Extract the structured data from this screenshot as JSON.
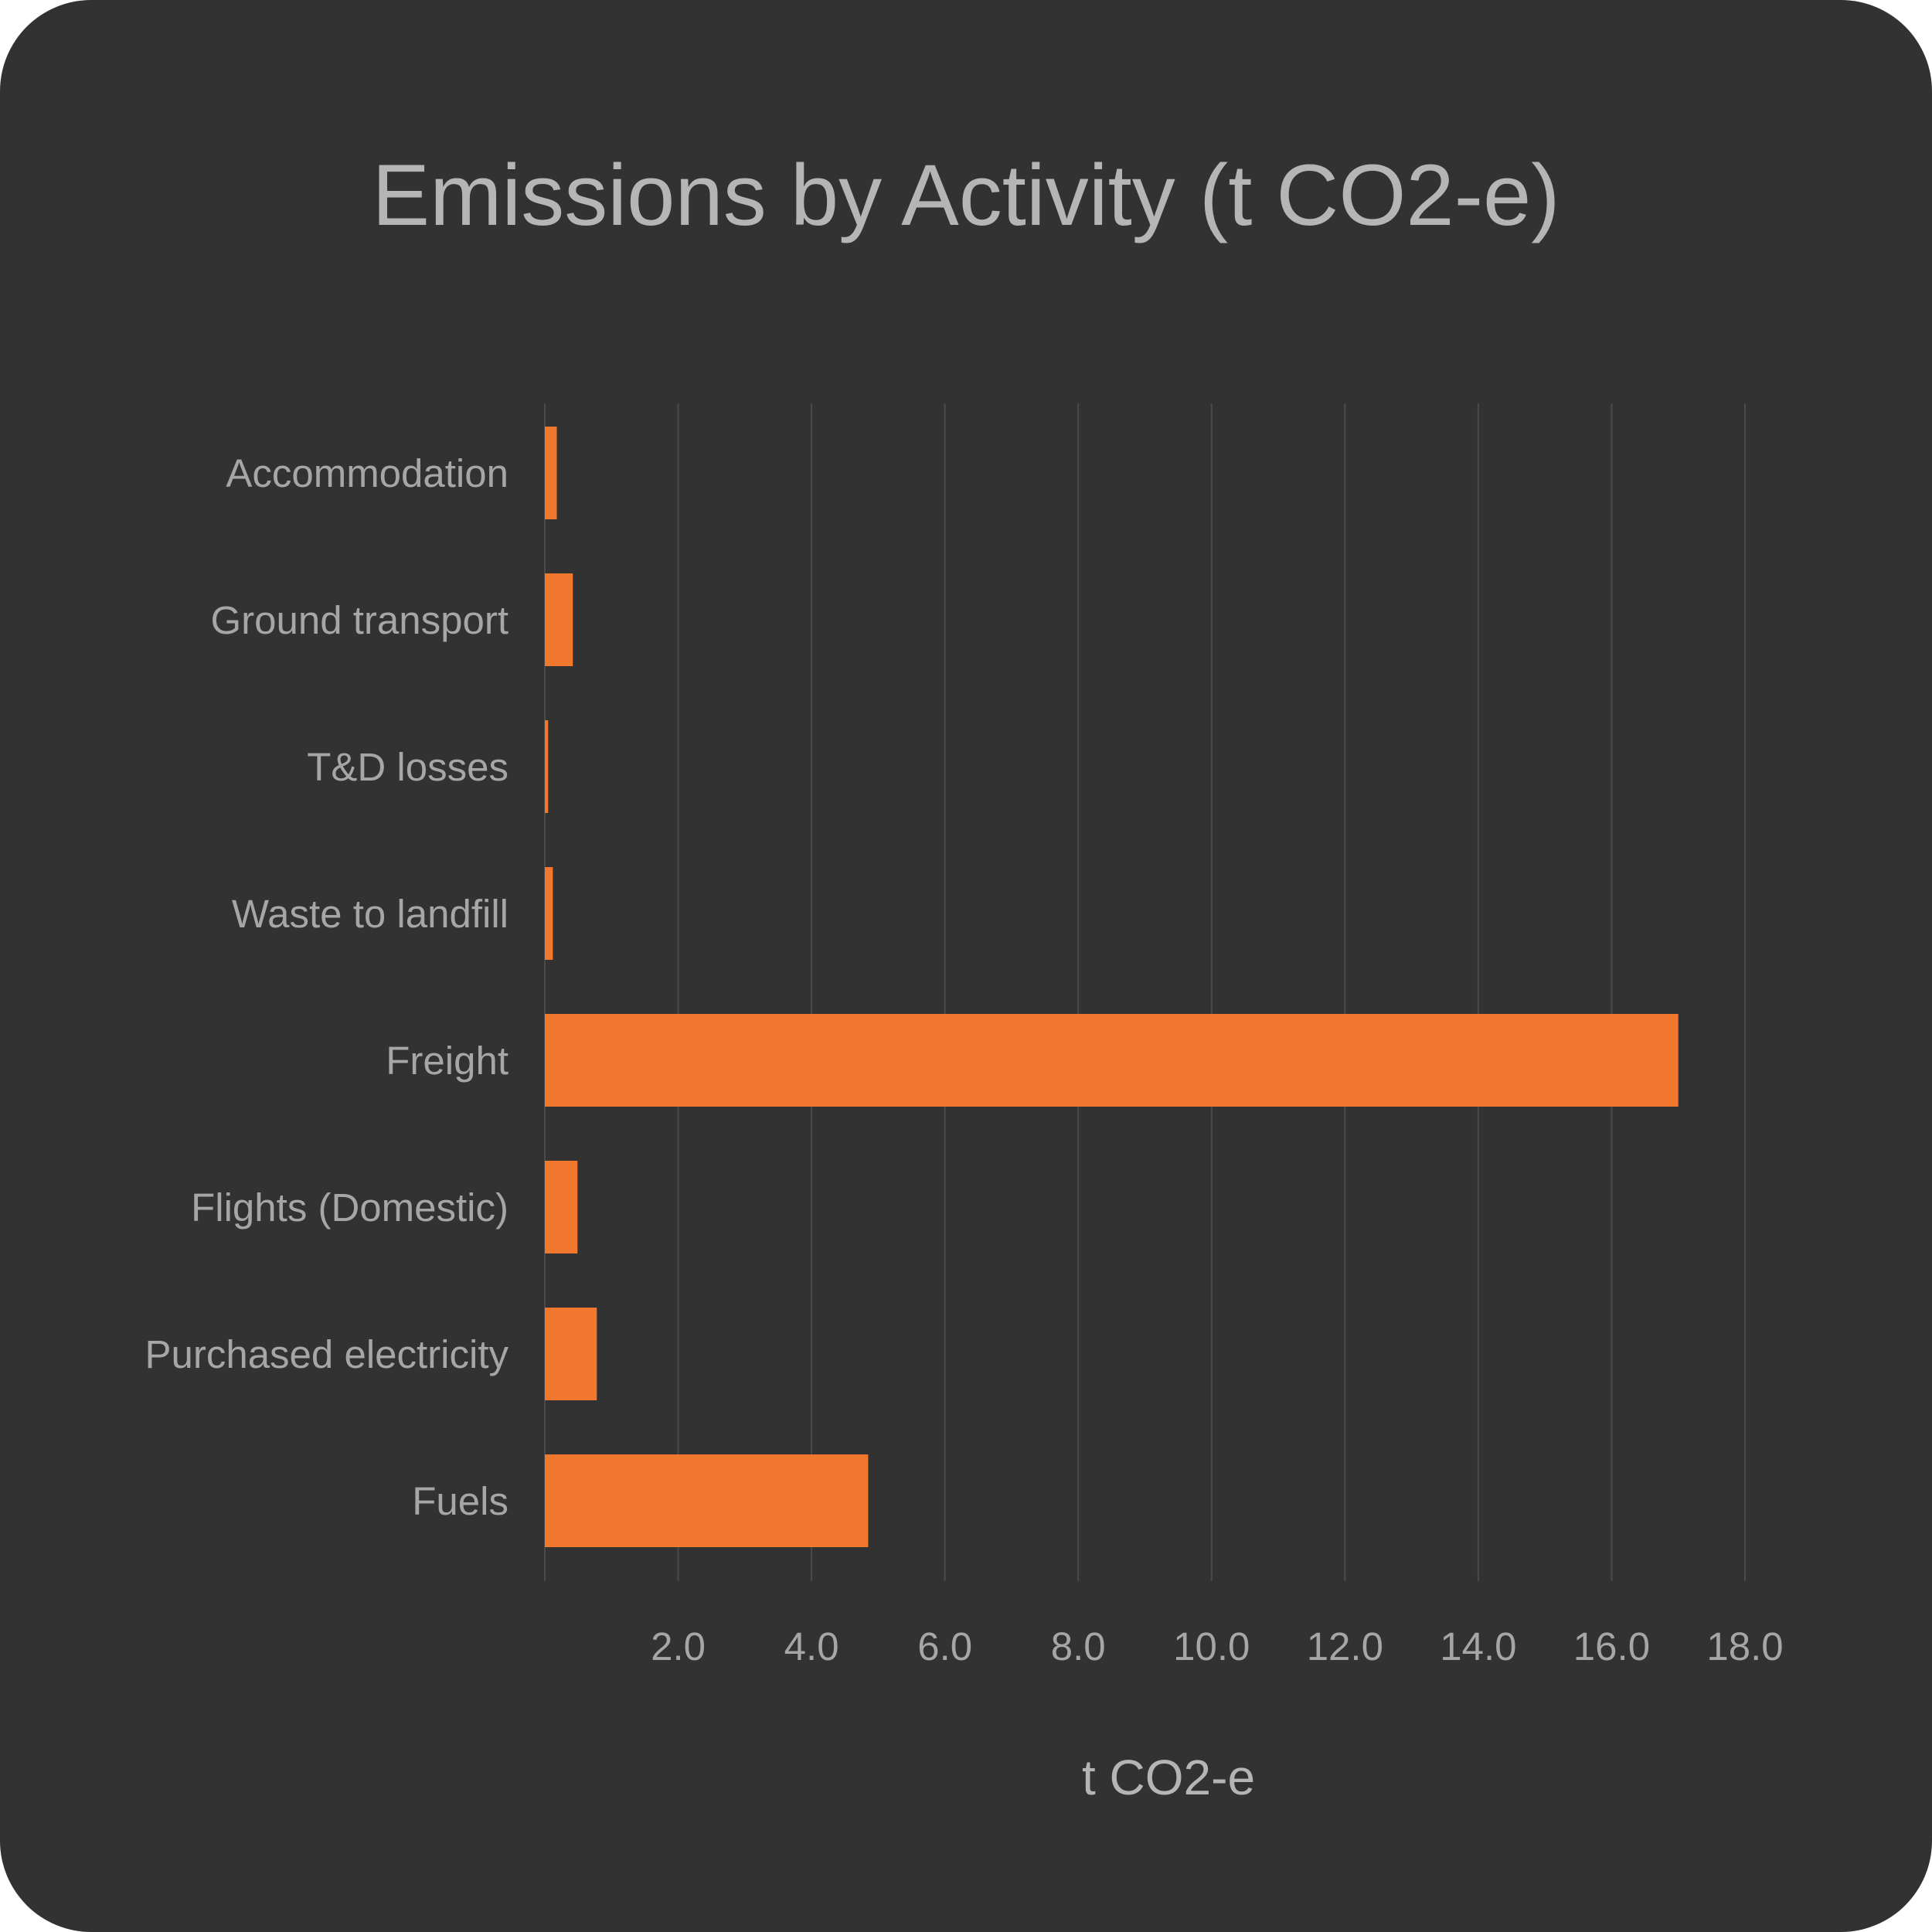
{
  "chart_data": {
    "type": "bar",
    "orientation": "horizontal",
    "title": "Emissions by Activity (t CO2-e)",
    "xlabel": "t CO2-e",
    "ylabel": "",
    "categories": [
      "Accommodation",
      "Ground transport",
      "T&D losses",
      "Waste to landfill",
      "Freight",
      "Flights (Domestic)",
      "Purchased electricity",
      "Fuels"
    ],
    "values": [
      0.18,
      0.42,
      0.05,
      0.12,
      17.0,
      0.49,
      0.78,
      4.85
    ],
    "xlim": [
      0,
      18
    ],
    "xticks": [
      "2.0",
      "4.0",
      "6.0",
      "8.0",
      "10.0",
      "12.0",
      "14.0",
      "16.0",
      "18.0"
    ],
    "grid": true,
    "legend": "none",
    "colors": {
      "background": "#323232",
      "bar": "#f2772f",
      "grid": "#4a4a4a",
      "text": "#a6a6a6"
    }
  }
}
